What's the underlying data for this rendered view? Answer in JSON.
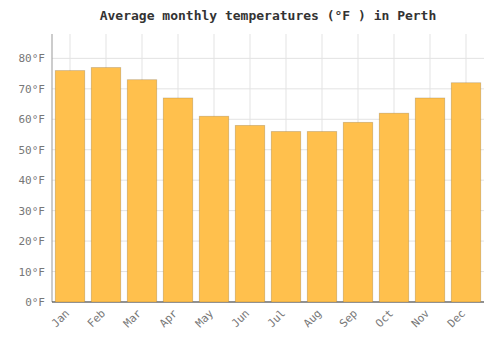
{
  "chart_data": {
    "type": "bar",
    "title": "Average monthly temperatures (°F ) in Perth",
    "categories": [
      "Jan",
      "Feb",
      "Mar",
      "Apr",
      "May",
      "Jun",
      "Jul",
      "Aug",
      "Sep",
      "Oct",
      "Nov",
      "Dec"
    ],
    "values": [
      76,
      77,
      73,
      67,
      61,
      58,
      56,
      56,
      59,
      62,
      67,
      72
    ],
    "color": "#FFC04D",
    "ylim": [
      0,
      88
    ],
    "yticks": [
      {
        "value": 0,
        "label": "0°F"
      },
      {
        "value": 10,
        "label": "10°F"
      },
      {
        "value": 20,
        "label": "20°F"
      },
      {
        "value": 30,
        "label": "30°F"
      },
      {
        "value": 40,
        "label": "40°F"
      },
      {
        "value": 50,
        "label": "50°F"
      },
      {
        "value": 60,
        "label": "60°F"
      },
      {
        "value": 70,
        "label": "70°F"
      },
      {
        "value": 80,
        "label": "80°F"
      }
    ],
    "grid": true
  }
}
